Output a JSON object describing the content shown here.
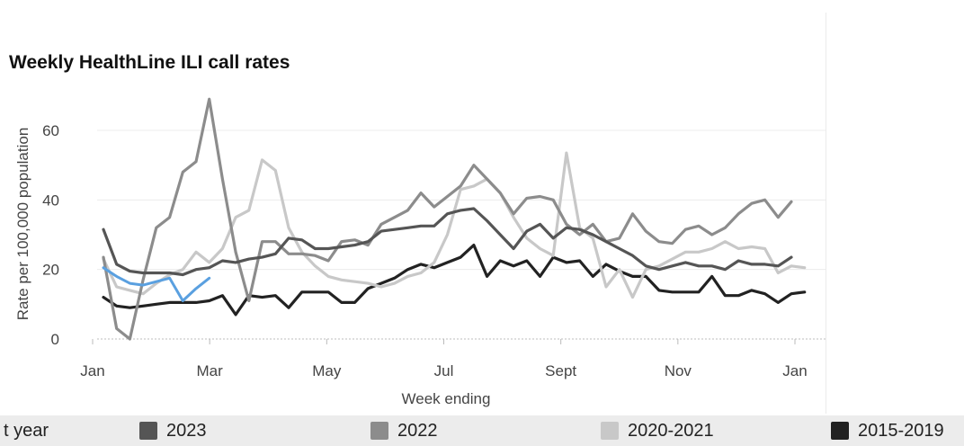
{
  "chart_data": {
    "type": "line",
    "title": "Weekly HealthLine ILI call rates",
    "xlabel": "Week ending",
    "ylabel": "Rate per 100,000 population",
    "ylim": [
      0,
      70
    ],
    "yticks": [
      0,
      20,
      40,
      60
    ],
    "xlim": [
      0,
      52
    ],
    "xticks": [
      {
        "label": "Jan",
        "week": 0
      },
      {
        "label": "Mar",
        "week": 9
      },
      {
        "label": "May",
        "week": 18
      },
      {
        "label": "Jul",
        "week": 27
      },
      {
        "label": "Sept",
        "week": 36
      },
      {
        "label": "Nov",
        "week": 45
      },
      {
        "label": "Jan",
        "week": 54
      }
    ],
    "grid": true,
    "legend": "bottom",
    "series": [
      {
        "name": "2015-2019",
        "color": "#222222",
        "values": [
          12,
          9.5,
          9,
          9.5,
          10,
          10.5,
          10.5,
          10.5,
          11,
          12.5,
          7,
          12.5,
          12,
          12.5,
          9,
          13.5,
          13.5,
          13.5,
          10.5,
          10.5,
          14.5,
          16,
          17.5,
          20,
          21.5,
          20.5,
          22,
          23.5,
          27,
          18,
          22.5,
          21,
          22.5,
          18,
          23.5,
          22,
          22.5,
          18,
          21.5,
          19.5,
          18,
          18,
          14,
          13.5,
          13.5,
          13.5,
          18,
          12.5,
          12.5,
          14,
          13,
          10.5,
          13,
          13.5
        ]
      },
      {
        "name": "2020-2021",
        "color": "#c8c8c8",
        "values": [
          23,
          15,
          14,
          13,
          16,
          18.5,
          20,
          25,
          22,
          26,
          35,
          37,
          51.5,
          48.5,
          32,
          25,
          21,
          18,
          17,
          16.5,
          16,
          15,
          16,
          18,
          19,
          22,
          30,
          43,
          44,
          46,
          42,
          35,
          29,
          26,
          24,
          53.5,
          32,
          29,
          15,
          20,
          12,
          20,
          21,
          23,
          25,
          25,
          26,
          28,
          26,
          26.5,
          26,
          19,
          21,
          20.5
        ]
      },
      {
        "name": "2022",
        "color": "#8c8c8c",
        "values": [
          23.5,
          3,
          0,
          17,
          32,
          35,
          48,
          51,
          69,
          46,
          25,
          11,
          28,
          28,
          24.5,
          24.5,
          24,
          22.5,
          28,
          28.5,
          27,
          33,
          35,
          37,
          42,
          38,
          41,
          44,
          50,
          46,
          42,
          36,
          40.5,
          41,
          40,
          33,
          30,
          33,
          28,
          29,
          36,
          31,
          28,
          27.5,
          31.5,
          32.5,
          30,
          32,
          36,
          39,
          40,
          35,
          39.5
        ]
      },
      {
        "name": "2023",
        "color": "#555555",
        "values": [
          31.5,
          21.5,
          19.5,
          19,
          19,
          19,
          18.5,
          20,
          20.5,
          22.5,
          22,
          23,
          23.5,
          24.5,
          29,
          28.5,
          26,
          26,
          26.5,
          27,
          28,
          31,
          31.5,
          32,
          32.5,
          32.5,
          36,
          37,
          37.5,
          34,
          30,
          26,
          31,
          33,
          29,
          32,
          31.5,
          30,
          28,
          26,
          24,
          21,
          20,
          21,
          22,
          21,
          21,
          20,
          22.5,
          21.5,
          21.5,
          21,
          23.5
        ]
      },
      {
        "name": "Current year",
        "color": "#5aa0e0",
        "values": [
          20.5,
          18,
          16,
          15.5,
          16.5,
          17.5,
          11,
          14.5,
          17.5
        ]
      }
    ]
  },
  "legend": {
    "items": [
      {
        "label": "Current year",
        "visible_label": "t year",
        "color": "#5aa0e0"
      },
      {
        "label": "2023",
        "color": "#555555"
      },
      {
        "label": "2022",
        "color": "#8c8c8c"
      },
      {
        "label": "2020-2021",
        "color": "#c8c8c8"
      },
      {
        "label": "2015-2019",
        "color": "#222222"
      }
    ]
  }
}
